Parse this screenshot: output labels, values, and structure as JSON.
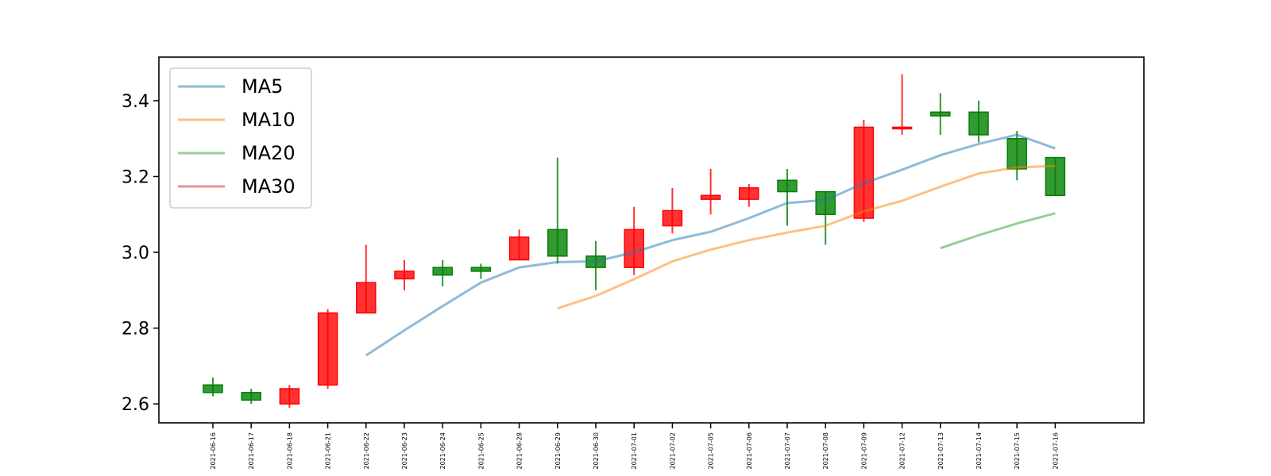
{
  "chart_data": {
    "type": "candlestick",
    "title": "",
    "xlabel": "",
    "ylabel": "",
    "ylim": [
      2.55,
      3.515
    ],
    "yticks": [
      2.6,
      2.8,
      3.0,
      3.2,
      3.4
    ],
    "ytick_labels": [
      "2.6",
      "2.8",
      "3.0",
      "3.2",
      "3.4"
    ],
    "grid": false,
    "legend_position": "upper-left",
    "colors": {
      "up": "#ff0000",
      "down": "#008000"
    },
    "categories": [
      "2021-06-16",
      "2021-06-17",
      "2021-06-18",
      "2021-06-21",
      "2021-06-22",
      "2021-06-23",
      "2021-06-24",
      "2021-06-25",
      "2021-06-28",
      "2021-06-29",
      "2021-06-30",
      "2021-07-01",
      "2021-07-02",
      "2021-07-05",
      "2021-07-06",
      "2021-07-07",
      "2021-07-08",
      "2021-07-09",
      "2021-07-12",
      "2021-07-13",
      "2021-07-14",
      "2021-07-15",
      "2021-07-16"
    ],
    "candles": [
      {
        "open": 2.65,
        "close": 2.63,
        "high": 2.67,
        "low": 2.62
      },
      {
        "open": 2.63,
        "close": 2.61,
        "high": 2.64,
        "low": 2.6
      },
      {
        "open": 2.6,
        "close": 2.64,
        "high": 2.65,
        "low": 2.59
      },
      {
        "open": 2.65,
        "close": 2.84,
        "high": 2.85,
        "low": 2.64
      },
      {
        "open": 2.84,
        "close": 2.92,
        "high": 3.02,
        "low": 2.84
      },
      {
        "open": 2.93,
        "close": 2.95,
        "high": 2.98,
        "low": 2.9
      },
      {
        "open": 2.96,
        "close": 2.94,
        "high": 2.98,
        "low": 2.91
      },
      {
        "open": 2.96,
        "close": 2.95,
        "high": 2.97,
        "low": 2.93
      },
      {
        "open": 2.98,
        "close": 3.04,
        "high": 3.06,
        "low": 2.98
      },
      {
        "open": 3.06,
        "close": 2.99,
        "high": 3.25,
        "low": 2.97
      },
      {
        "open": 2.99,
        "close": 2.96,
        "high": 3.03,
        "low": 2.9
      },
      {
        "open": 2.96,
        "close": 3.06,
        "high": 3.12,
        "low": 2.94
      },
      {
        "open": 3.07,
        "close": 3.11,
        "high": 3.17,
        "low": 3.05
      },
      {
        "open": 3.14,
        "close": 3.15,
        "high": 3.22,
        "low": 3.1
      },
      {
        "open": 3.14,
        "close": 3.17,
        "high": 3.18,
        "low": 3.12
      },
      {
        "open": 3.19,
        "close": 3.16,
        "high": 3.22,
        "low": 3.07
      },
      {
        "open": 3.16,
        "close": 3.1,
        "high": 3.16,
        "low": 3.02
      },
      {
        "open": 3.09,
        "close": 3.33,
        "high": 3.35,
        "low": 3.08
      },
      {
        "open": 3.33,
        "close": 3.33,
        "high": 3.47,
        "low": 3.31
      },
      {
        "open": 3.37,
        "close": 3.36,
        "high": 3.42,
        "low": 3.31
      },
      {
        "open": 3.37,
        "close": 3.31,
        "high": 3.4,
        "low": 3.29
      },
      {
        "open": 3.3,
        "close": 3.22,
        "high": 3.32,
        "low": 3.19
      },
      {
        "open": 3.25,
        "close": 3.15,
        "high": 3.25,
        "low": 3.15
      }
    ],
    "series": [
      {
        "name": "MA5",
        "color": "#1f77b4",
        "values": [
          null,
          null,
          null,
          null,
          2.728,
          2.794,
          2.858,
          2.92,
          2.96,
          2.974,
          2.976,
          3.0,
          3.032,
          3.054,
          3.09,
          3.13,
          3.138,
          3.182,
          3.218,
          3.256,
          3.286,
          3.31,
          3.274
        ]
      },
      {
        "name": "MA10",
        "color": "#ff7f0e",
        "values": [
          null,
          null,
          null,
          null,
          null,
          null,
          null,
          null,
          null,
          2.852,
          2.885,
          2.929,
          2.976,
          3.007,
          3.032,
          3.052,
          3.07,
          3.108,
          3.136,
          3.173,
          3.208,
          3.224,
          3.228
        ]
      },
      {
        "name": "MA20",
        "color": "#2ca02c",
        "values": [
          null,
          null,
          null,
          null,
          null,
          null,
          null,
          null,
          null,
          null,
          null,
          null,
          null,
          null,
          null,
          null,
          null,
          null,
          null,
          3.011,
          3.045,
          3.076,
          3.103
        ]
      },
      {
        "name": "MA30",
        "color": "#d62728",
        "values": [
          null,
          null,
          null,
          null,
          null,
          null,
          null,
          null,
          null,
          null,
          null,
          null,
          null,
          null,
          null,
          null,
          null,
          null,
          null,
          null,
          null,
          null,
          null
        ]
      }
    ]
  }
}
